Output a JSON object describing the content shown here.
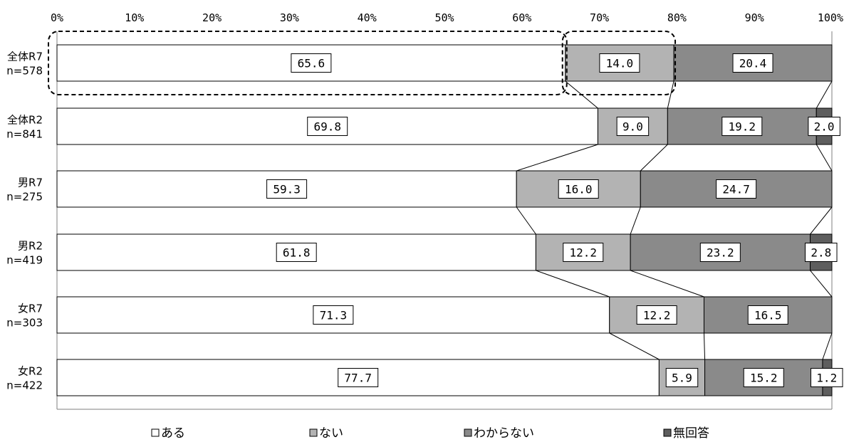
{
  "chart_data": {
    "type": "bar",
    "orientation": "horizontal",
    "stacked": "100%",
    "x_ticks": [
      "0%",
      "10%",
      "20%",
      "30%",
      "40%",
      "50%",
      "60%",
      "70%",
      "80%",
      "90%",
      "100%"
    ],
    "xlim": [
      0,
      100
    ],
    "categories": [
      {
        "line1": "全体R7",
        "line2": "n=578"
      },
      {
        "line1": "全体R2",
        "line2": "n=841"
      },
      {
        "line1": "男R7",
        "line2": "n=275"
      },
      {
        "line1": "男R2",
        "line2": "n=419"
      },
      {
        "line1": "女R7",
        "line2": "n=303"
      },
      {
        "line1": "女R2",
        "line2": "n=422"
      }
    ],
    "series": [
      {
        "name": "ある",
        "color": "#ffffff",
        "values": [
          65.6,
          69.8,
          59.3,
          61.8,
          71.3,
          77.7
        ],
        "labels": [
          "65.6",
          "69.8",
          "59.3",
          "61.8",
          "71.3",
          "77.7"
        ]
      },
      {
        "name": "ない",
        "color": "#b3b3b3",
        "values": [
          14.0,
          9.0,
          16.0,
          12.2,
          12.2,
          5.9
        ],
        "labels": [
          "14.0",
          "9.0",
          "16.0",
          "12.2",
          "12.2",
          "5.9"
        ]
      },
      {
        "name": "わからない",
        "color": "#8a8a8a",
        "values": [
          20.4,
          19.2,
          24.7,
          23.2,
          16.5,
          15.2
        ],
        "labels": [
          "20.4",
          "19.2",
          "24.7",
          "23.2",
          "16.5",
          "15.2"
        ]
      },
      {
        "name": "無回答",
        "color": "#5e5e5e",
        "values": [
          0,
          2.0,
          0,
          2.8,
          0,
          1.2
        ],
        "labels": [
          "",
          "2.0",
          "",
          "2.8",
          "",
          "1.2"
        ]
      }
    ],
    "legend_position": "bottom",
    "connector_lines": true,
    "highlight": {
      "category_index": 0,
      "series": [
        "ある",
        "ない"
      ],
      "style": "dashed rounded box"
    }
  }
}
